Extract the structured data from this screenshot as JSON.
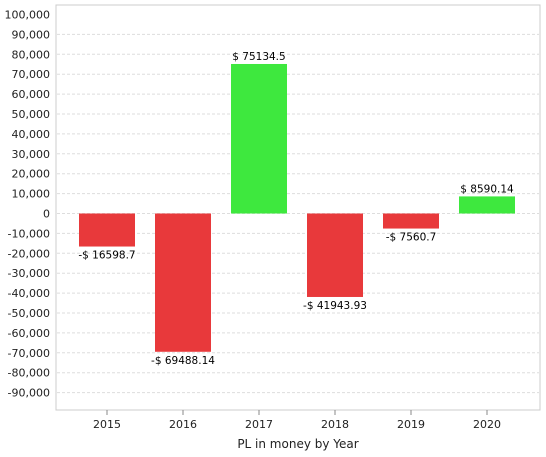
{
  "chart_data": {
    "type": "bar",
    "xlabel": "PL in money by Year",
    "ylabel": "",
    "ylim": [
      -100000,
      100000
    ],
    "yticks": [
      100000,
      90000,
      80000,
      70000,
      60000,
      50000,
      40000,
      30000,
      20000,
      10000,
      0,
      -10000,
      -20000,
      -30000,
      -40000,
      -50000,
      -60000,
      -70000,
      -80000,
      -90000
    ],
    "ytick_labels": [
      "100,000",
      "90,000",
      "80,000",
      "70,000",
      "60,000",
      "50,000",
      "40,000",
      "30,000",
      "20,000",
      "10,000",
      "0",
      "-10,000",
      "-20,000",
      "-30,000",
      "-40,000",
      "-50,000",
      "-60,000",
      "-70,000",
      "-80,000",
      "-90,000"
    ],
    "categories": [
      "2015",
      "2016",
      "2017",
      "2018",
      "2019",
      "2020"
    ],
    "values": [
      -16598.7,
      -69488.14,
      75134.5,
      -41943.93,
      -7560.7,
      8590.14
    ],
    "data_labels": [
      "-$ 16598.7",
      "-$ 69488.14",
      "$ 75134.5",
      "-$ 41943.93",
      "-$ 7560.7",
      "$ 8590.14"
    ],
    "grid": true,
    "colors": {
      "positive": "#3ee83e",
      "negative": "#e8393b",
      "grid": "#dddddd",
      "axis": "#888888"
    }
  }
}
